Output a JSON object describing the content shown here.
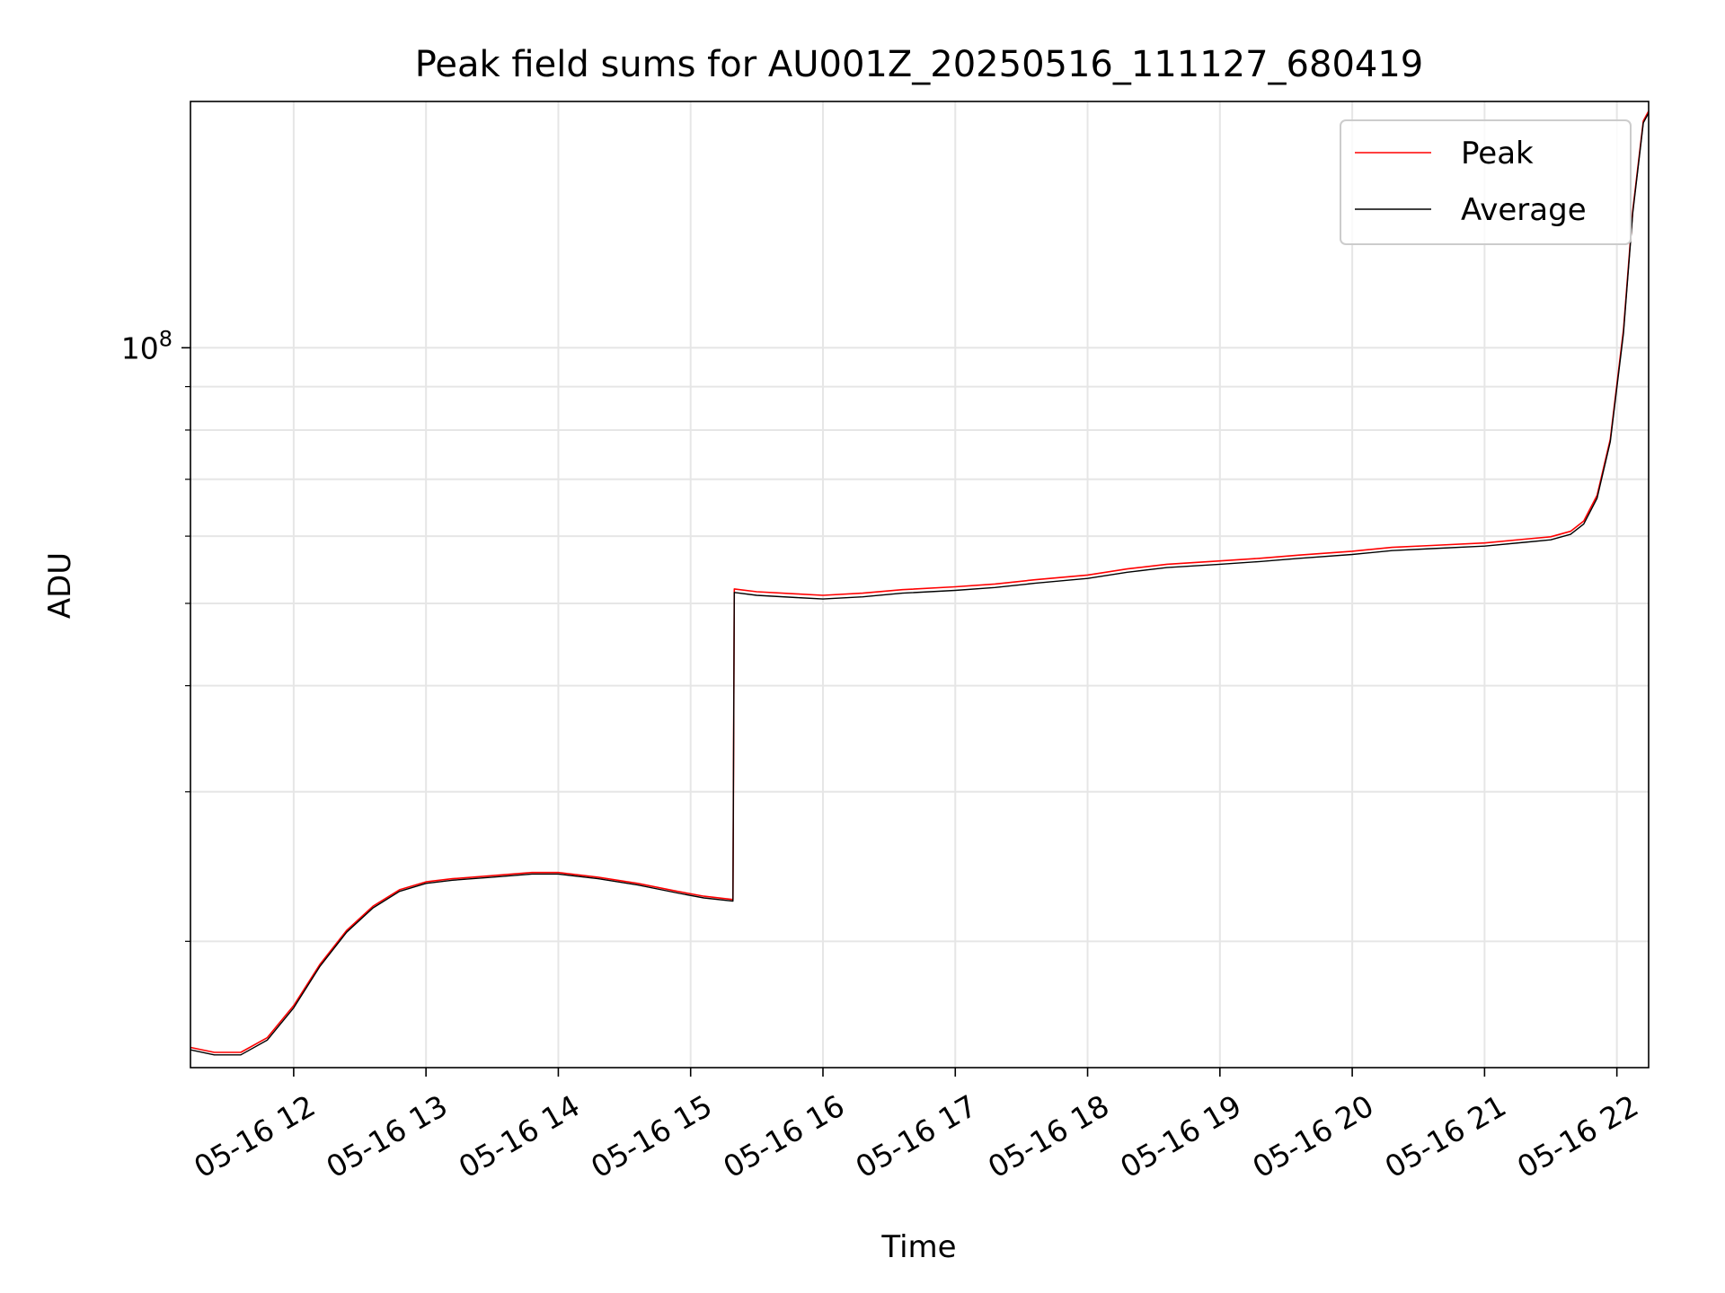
{
  "chart_data": {
    "type": "line",
    "title": "Peak field sums for AU001Z_20250516_111127_680419",
    "xlabel": "Time",
    "ylabel": "ADU",
    "y_scale": "log",
    "grid": true,
    "legend_position": "top-right",
    "x_unit": "hour of 2025-05-16",
    "xlim": [
      11.22,
      22.24
    ],
    "ylim": [
      14200000,
      195000000
    ],
    "x_ticks": [
      12,
      13,
      14,
      15,
      16,
      17,
      18,
      19,
      20,
      21,
      22
    ],
    "x_tick_labels": [
      "05-16 12",
      "05-16 13",
      "05-16 14",
      "05-16 15",
      "05-16 16",
      "05-16 17",
      "05-16 18",
      "05-16 19",
      "05-16 20",
      "05-16 21",
      "05-16 22"
    ],
    "y_major_ticks": [
      100000000
    ],
    "y_major_tick_labels": [
      {
        "base": "10",
        "exp": "8"
      }
    ],
    "y_minor_ticks": [
      20000000,
      30000000,
      40000000,
      50000000,
      60000000,
      70000000,
      80000000,
      90000000,
      200000000
    ],
    "series": [
      {
        "name": "Peak",
        "color": "#ff0000",
        "x": [
          11.22,
          11.4,
          11.6,
          11.8,
          12.0,
          12.2,
          12.4,
          12.6,
          12.8,
          13.0,
          13.2,
          13.5,
          13.8,
          14.0,
          14.3,
          14.6,
          14.9,
          15.1,
          15.32,
          15.33,
          15.5,
          15.8,
          16.0,
          16.3,
          16.6,
          17.0,
          17.3,
          17.6,
          18.0,
          18.3,
          18.6,
          19.0,
          19.3,
          19.6,
          20.0,
          20.3,
          20.6,
          21.0,
          21.3,
          21.5,
          21.65,
          21.75,
          21.85,
          21.95,
          22.05,
          22.12,
          22.2,
          22.24
        ],
        "y": [
          15000000,
          14800000,
          14800000,
          15400000,
          16800000,
          18800000,
          20600000,
          22000000,
          23000000,
          23500000,
          23700000,
          23900000,
          24100000,
          24100000,
          23800000,
          23400000,
          22900000,
          22600000,
          22400000,
          52000000,
          51600000,
          51300000,
          51100000,
          51400000,
          51900000,
          52300000,
          52700000,
          53300000,
          54000000,
          54900000,
          55600000,
          56100000,
          56500000,
          57000000,
          57600000,
          58200000,
          58500000,
          58900000,
          59500000,
          59900000,
          60800000,
          62500000,
          67000000,
          78000000,
          105000000,
          145000000,
          185000000,
          190000000
        ]
      },
      {
        "name": "Average",
        "color": "#000000",
        "x": [
          11.22,
          11.4,
          11.6,
          11.8,
          12.0,
          12.2,
          12.4,
          12.6,
          12.8,
          13.0,
          13.2,
          13.5,
          13.8,
          14.0,
          14.3,
          14.6,
          14.9,
          15.1,
          15.32,
          15.33,
          15.5,
          15.8,
          16.0,
          16.3,
          16.6,
          17.0,
          17.3,
          17.6,
          18.0,
          18.3,
          18.6,
          19.0,
          19.3,
          19.6,
          20.0,
          20.3,
          20.6,
          21.0,
          21.3,
          21.5,
          21.65,
          21.75,
          21.85,
          21.95,
          22.05,
          22.12,
          22.2,
          22.24
        ],
        "y": [
          14900000,
          14700000,
          14700000,
          15300000,
          16700000,
          18700000,
          20500000,
          21900000,
          22900000,
          23400000,
          23600000,
          23800000,
          24000000,
          24000000,
          23700000,
          23300000,
          22800000,
          22500000,
          22300000,
          51500000,
          51100000,
          50800000,
          50600000,
          50900000,
          51400000,
          51800000,
          52200000,
          52800000,
          53500000,
          54400000,
          55100000,
          55600000,
          56000000,
          56500000,
          57100000,
          57700000,
          58000000,
          58400000,
          59000000,
          59400000,
          60300000,
          62000000,
          66500000,
          77500000,
          104000000,
          144000000,
          184000000,
          189000000
        ]
      }
    ]
  }
}
